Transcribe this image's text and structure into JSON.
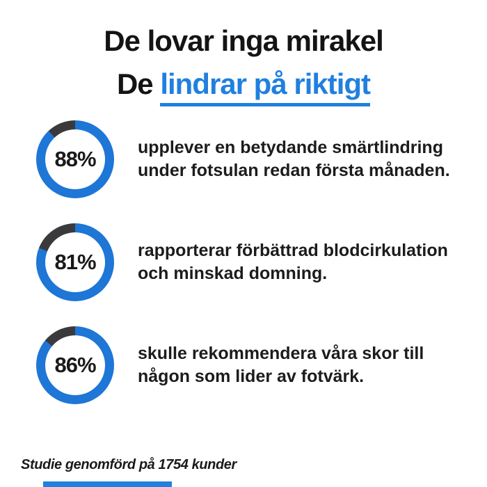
{
  "header": {
    "title_line1": "De lovar inga mirakel",
    "title_line2_prefix": "De ",
    "title_line2_link": "lindrar på riktigt"
  },
  "chart_data": {
    "type": "pie",
    "subtype": "donut_progress",
    "title": "De lovar inga mirakel — De lindrar på riktigt",
    "direction": "clockwise",
    "start_angle": "top",
    "legend": "none",
    "charts": [
      {
        "label": "88%",
        "value": 88,
        "remainder": 12,
        "caption": "upplever en betydande smärtlindring\nunder fotsulan redan första månaden."
      },
      {
        "label": "81%",
        "value": 81,
        "remainder": 19,
        "caption": "rapporterar förbättrad blodcirkulation\noch minskad domning."
      },
      {
        "label": "86%",
        "value": 86,
        "remainder": 14,
        "caption": "skulle rekommendera våra skor till\nnågon som lider av fotvärk."
      }
    ]
  },
  "footer": {
    "note": "Studie genomförd på 1754 kunder"
  },
  "colors": {
    "accent_blue": "#2180de",
    "ring_blue": "#1e76d6",
    "ring_dark": "#3a3a3d",
    "text": "#161616",
    "background": "#ffffff"
  }
}
